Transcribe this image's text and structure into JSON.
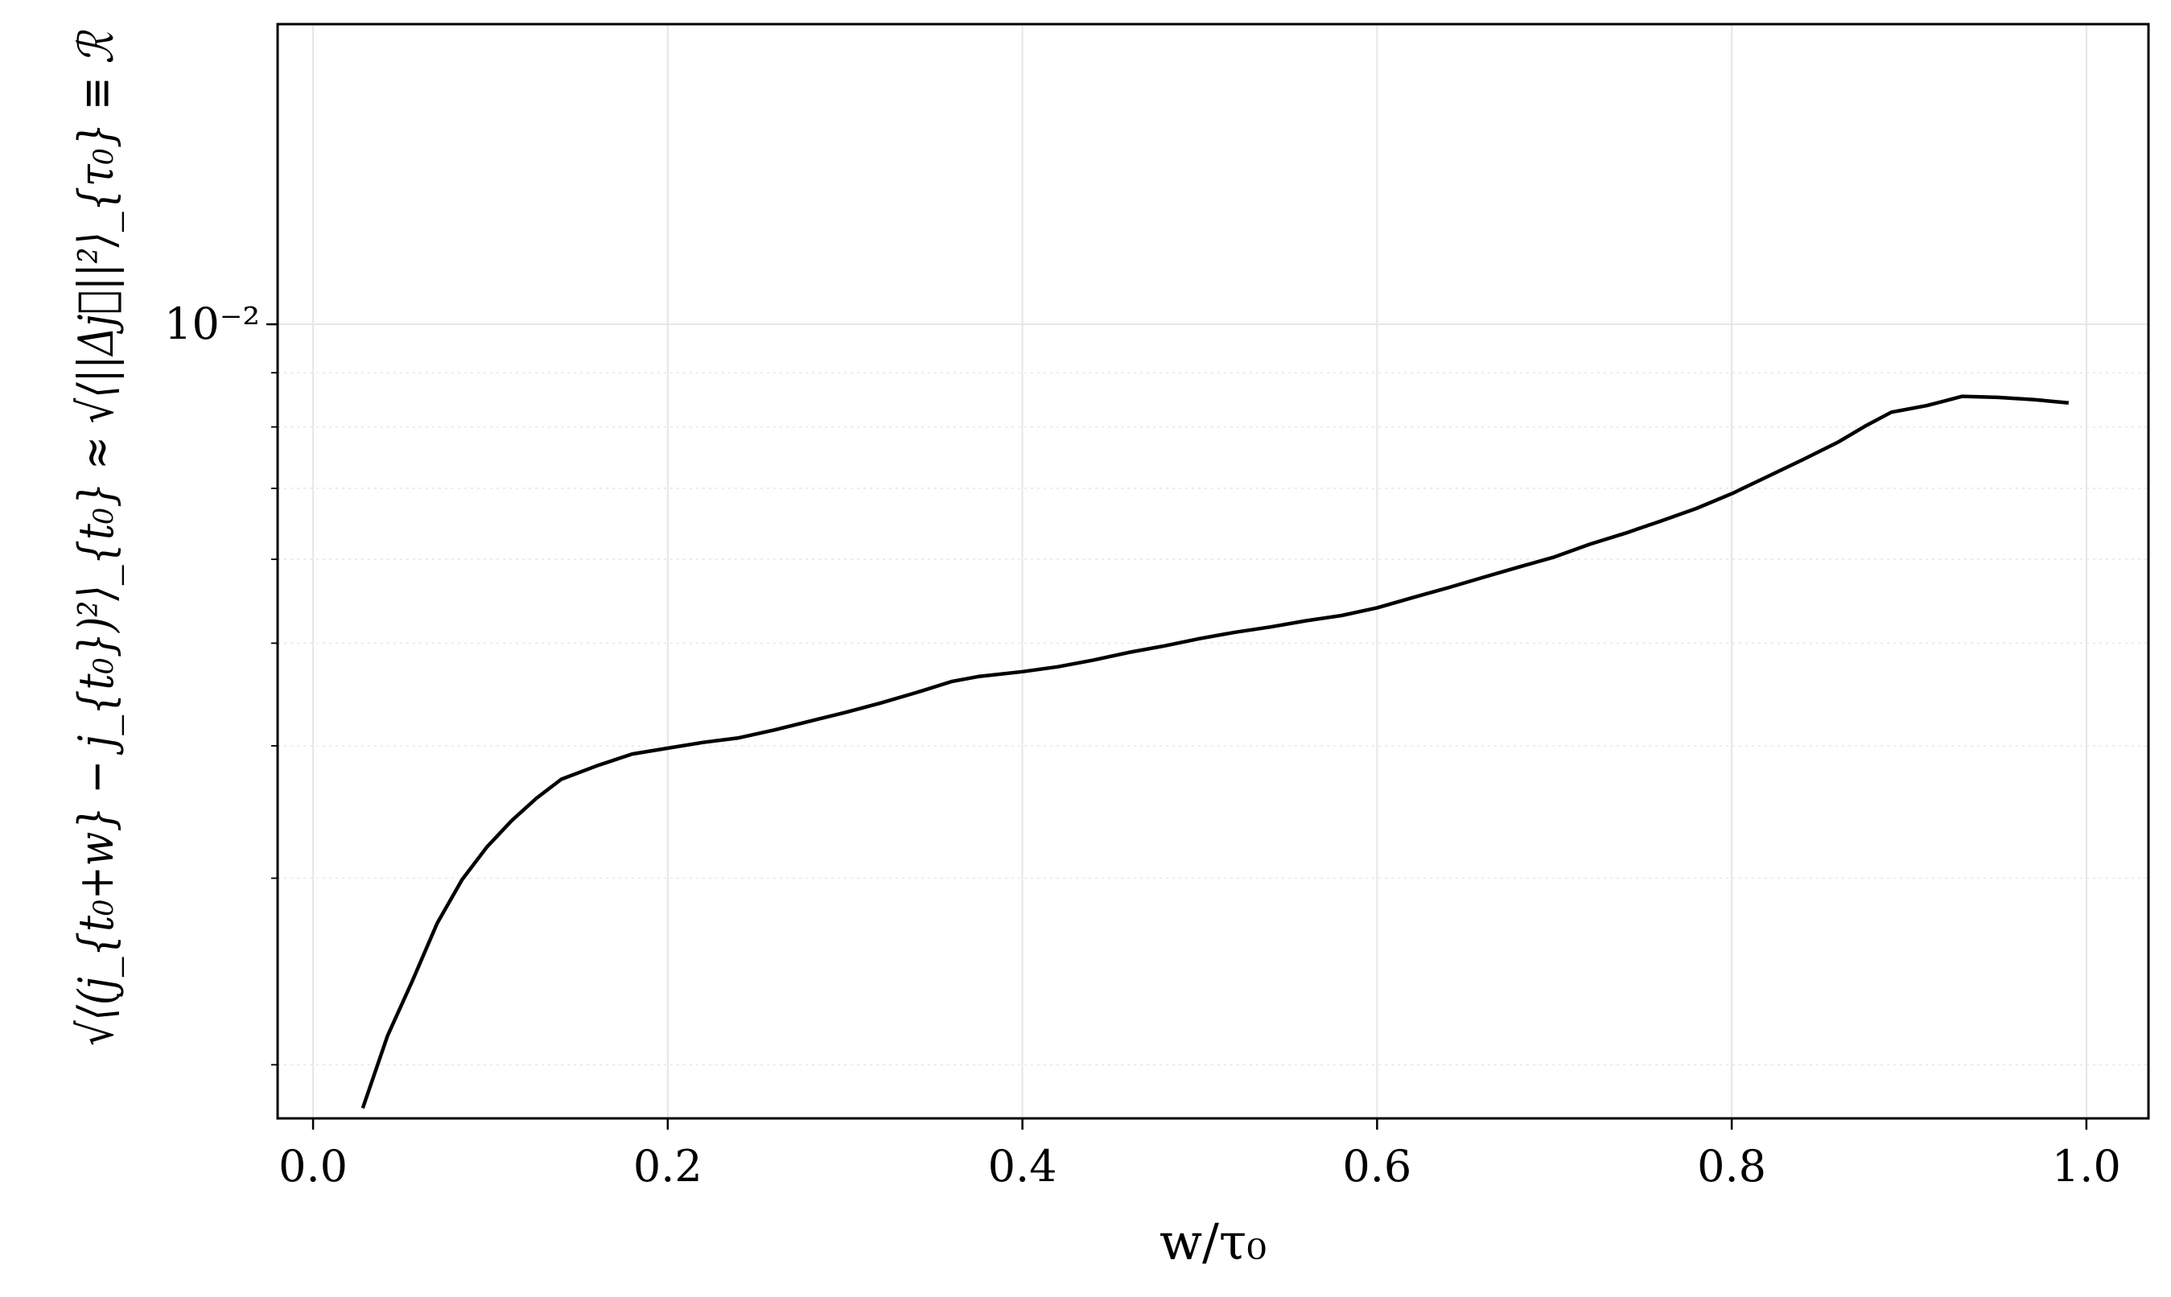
{
  "chart_data": {
    "type": "line",
    "title": "",
    "xlabel": "w/τ₀",
    "ylabel": "√⟨(j_{t₀+w} − j_{t₀})²⟩_{t₀} ≈ √⟨||Δj⃗||²⟩_{τ₀} ≡ ℛ",
    "xlim": [
      -0.02,
      1.035
    ],
    "ylim": [
      0.00178,
      0.0192
    ],
    "yscale": "log",
    "grid": true,
    "x_ticks": [
      0.0,
      0.2,
      0.4,
      0.6,
      0.8,
      1.0
    ],
    "x_tick_labels": [
      "0.0",
      "0.2",
      "0.4",
      "0.6",
      "0.8",
      "1.0"
    ],
    "y_major_ticks": [
      0.01
    ],
    "y_major_tick_labels": [
      "10⁻²"
    ],
    "y_minor_ticks": [
      0.002,
      0.003,
      0.004,
      0.005,
      0.006,
      0.007,
      0.008,
      0.009
    ],
    "series": [
      {
        "color": "#000000",
        "x": [
          0.028,
          0.042,
          0.056,
          0.07,
          0.084,
          0.098,
          0.112,
          0.126,
          0.14,
          0.16,
          0.18,
          0.2,
          0.22,
          0.24,
          0.26,
          0.28,
          0.3,
          0.32,
          0.34,
          0.36,
          0.375,
          0.4,
          0.42,
          0.44,
          0.46,
          0.48,
          0.5,
          0.52,
          0.54,
          0.56,
          0.58,
          0.6,
          0.62,
          0.64,
          0.66,
          0.68,
          0.7,
          0.72,
          0.74,
          0.76,
          0.78,
          0.8,
          0.82,
          0.84,
          0.86,
          0.875,
          0.89,
          0.91,
          0.93,
          0.95,
          0.97,
          0.99
        ],
        "y": [
          0.00182,
          0.00213,
          0.0024,
          0.00272,
          0.00299,
          0.00321,
          0.0034,
          0.00357,
          0.00372,
          0.00383,
          0.00393,
          0.00398,
          0.00403,
          0.00407,
          0.00414,
          0.00422,
          0.0043,
          0.00439,
          0.00449,
          0.0046,
          0.00465,
          0.0047,
          0.00475,
          0.00482,
          0.0049,
          0.00497,
          0.00505,
          0.00512,
          0.00518,
          0.00525,
          0.00531,
          0.0054,
          0.00552,
          0.00564,
          0.00577,
          0.0059,
          0.00603,
          0.0062,
          0.00635,
          0.00652,
          0.0067,
          0.00692,
          0.00718,
          0.00745,
          0.00774,
          0.00801,
          0.00826,
          0.00838,
          0.00855,
          0.00853,
          0.00849,
          0.00843
        ]
      }
    ]
  }
}
